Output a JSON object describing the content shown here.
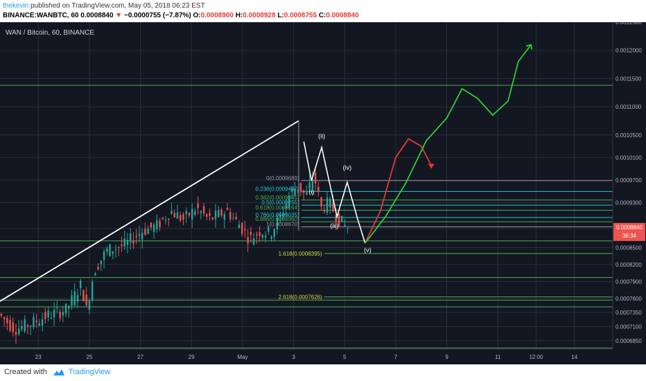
{
  "header": {
    "author": "thekevin",
    "published_text": "published on TradingView.com, May 05, 2018 06:23 EST",
    "symbol": "BINANCE:WANBTC, 60",
    "last": "0.0008840",
    "arrow": "▼",
    "change": "−0.0000755 (−7.87%)",
    "o_label": "O:",
    "o": "0.0008900",
    "h_label": "H:",
    "h": "0.0008928",
    "l_label": "L:",
    "l": "0.0008755",
    "c_label": "C:",
    "c": "0.0008840"
  },
  "chart_title": "WAN / Bitcoin, 60, BINANCE",
  "footer": {
    "created_with": "Created with",
    "brand": "TradingView"
  },
  "price_badge": {
    "price": "0.0008840",
    "timer": "36:34"
  },
  "colors": {
    "background": "#131722",
    "up": "#26a69a",
    "down": "#ef5350",
    "grid": "#2a2e39",
    "fib_green": "#4caf50",
    "fib_cyan": "#26c6da",
    "trend": "#ffffff",
    "projection_red": "#e53935",
    "projection_green": "#33cc33",
    "badge": "#ef5350"
  },
  "chart_data": {
    "type": "candlestick",
    "title": "WAN / Bitcoin, 60, BINANCE",
    "y_axis": {
      "min": 0.00067,
      "max": 0.00125,
      "tick_labels": [
        "0.0012500",
        "0.0012000",
        "0.0011500",
        "0.0011000",
        "0.0010500",
        "0.0010100",
        "0.0009700",
        "0.0009300",
        "0.0008840",
        "0.0008500",
        "0.0008200",
        "0.0007900",
        "0.0007600",
        "0.0007350",
        "0.0007100",
        "0.0006850"
      ]
    },
    "x_axis": {
      "tick_labels": [
        "23",
        "25",
        "27",
        "29",
        "May",
        "3",
        "5",
        "7",
        "9",
        "11",
        "12:00",
        "14"
      ],
      "tick_days": [
        23,
        25,
        27,
        29,
        31,
        33,
        35,
        37,
        39,
        41,
        42.5,
        44
      ],
      "day_range": [
        21.5,
        45.5
      ]
    },
    "price_path": [
      [
        21.5,
        0.000735
      ],
      [
        22.2,
        0.000705
      ],
      [
        22.8,
        0.000715
      ],
      [
        23.5,
        0.00073
      ],
      [
        24.2,
        0.00074
      ],
      [
        24.8,
        0.000785
      ],
      [
        25.0,
        0.00074
      ],
      [
        25.3,
        0.00081
      ],
      [
        25.8,
        0.000845
      ],
      [
        26.5,
        0.000855
      ],
      [
        27.2,
        0.00088
      ],
      [
        27.8,
        0.00089
      ],
      [
        28.3,
        0.000915
      ],
      [
        28.8,
        0.0009
      ],
      [
        29.3,
        0.00092
      ],
      [
        29.8,
        0.0009
      ],
      [
        30.5,
        0.000915
      ],
      [
        31.0,
        0.00089
      ],
      [
        31.4,
        0.000865
      ],
      [
        31.8,
        0.00088
      ],
      [
        32.2,
        0.000875
      ],
      [
        32.6,
        0.000905
      ],
      [
        33.0,
        0.00095
      ],
      [
        33.3,
        0.00096
      ],
      [
        33.6,
        0.00094
      ],
      [
        33.9,
        0.00098
      ],
      [
        34.2,
        0.00092
      ],
      [
        34.5,
        0.00093
      ],
      [
        34.8,
        0.000905
      ],
      [
        35.2,
        0.000885
      ]
    ],
    "trendline": {
      "from": [
        21.5,
        0.000755
      ],
      "to": [
        33.2,
        0.001075
      ]
    },
    "fib_retracement": {
      "levels": [
        {
          "ratio_label": "0(0.0009689)",
          "price": 0.0009689
        },
        {
          "ratio_label": "0.236(0.0009497)",
          "price": 0.0009497
        },
        {
          "ratio_label": "0.382(0.0009345)",
          "price": 0.0009345
        },
        {
          "ratio_label": "0.5(0.0009255)",
          "price": 0.0009255
        },
        {
          "ratio_label": "0.618(0.0009164)",
          "price": 0.0009164
        },
        {
          "ratio_label": "0.786(0.0009035)",
          "price": 0.0009035
        },
        {
          "ratio_label": "0.886(0.0008960)",
          "price": 0.000896
        },
        {
          "ratio_label": "1(0.0008870)",
          "price": 0.000887
        }
      ],
      "extensions": [
        {
          "ratio_label": "1.618(0.0008395)",
          "price": 0.0008395
        },
        {
          "ratio_label": "2.618(0.0007626)",
          "price": 0.0007626
        }
      ]
    },
    "horizontal_lines": [
      0.001138,
      0.000862,
      0.000797,
      0.000757,
      0.000745,
      0.000672
    ],
    "elliott_waves": {
      "points": [
        [
          33.4,
          0.001038
        ],
        [
          33.7,
          0.000969
        ],
        [
          34.1,
          0.001028
        ],
        [
          34.7,
          0.000905
        ],
        [
          35.1,
          0.000966
        ],
        [
          35.5,
          0.000902
        ],
        [
          35.8,
          0.000858
        ]
      ],
      "labels": [
        {
          "text": "(i)",
          "x": 33.7,
          "y": 0.000945
        },
        {
          "text": "(ii)",
          "x": 34.1,
          "y": 0.001044
        },
        {
          "text": "(iii)",
          "x": 34.6,
          "y": 0.000885
        },
        {
          "text": "(iv)",
          "x": 35.1,
          "y": 0.000988
        },
        {
          "text": "(v)",
          "x": 35.9,
          "y": 0.000842
        }
      ]
    },
    "projection_red": [
      [
        35.8,
        0.000858
      ],
      [
        36.4,
        0.000915
      ],
      [
        37.0,
        0.00101
      ],
      [
        37.5,
        0.001043
      ],
      [
        38.0,
        0.00103
      ],
      [
        38.4,
        0.000995
      ]
    ],
    "projection_green": [
      [
        35.8,
        0.000858
      ],
      [
        36.6,
        0.000905
      ],
      [
        37.4,
        0.000965
      ],
      [
        38.2,
        0.00104
      ],
      [
        38.6,
        0.00106
      ],
      [
        39.0,
        0.00108
      ],
      [
        39.6,
        0.001132
      ],
      [
        40.2,
        0.001115
      ],
      [
        40.8,
        0.001085
      ],
      [
        41.4,
        0.00111
      ],
      [
        41.8,
        0.00118
      ],
      [
        42.3,
        0.00121
      ]
    ]
  }
}
